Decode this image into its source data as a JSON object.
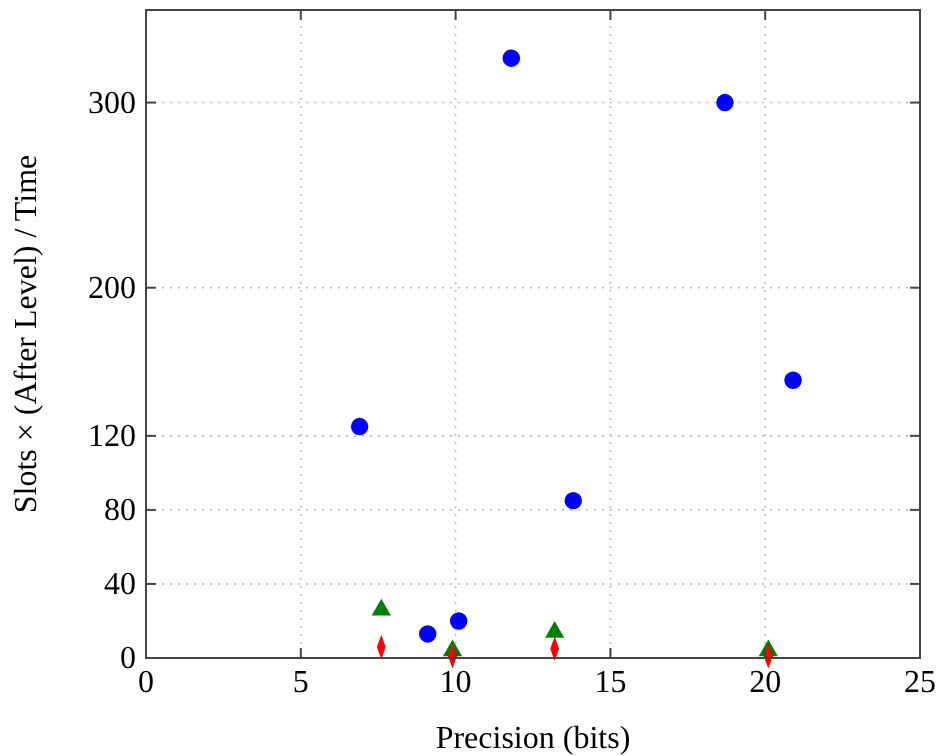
{
  "chart_data": {
    "type": "scatter",
    "xlabel": "Precision (bits)",
    "ylabel": "Slots × (After Level) / Time",
    "xlim": [
      0,
      25
    ],
    "ylim": [
      0,
      350
    ],
    "xticks": [
      0,
      5,
      10,
      15,
      20,
      25
    ],
    "yticks": [
      0,
      40,
      80,
      120,
      200,
      300
    ],
    "grid": true,
    "series": [
      {
        "color": "#0000ff",
        "marker": "circle",
        "x": [
          6.9,
          9.1,
          10.1,
          11.8,
          13.8,
          18.7,
          20.9
        ],
        "values": [
          125,
          13,
          20,
          324,
          85,
          300,
          150
        ]
      },
      {
        "color": "#008000",
        "marker": "triangle",
        "x": [
          7.6,
          9.9,
          13.2,
          20.1
        ],
        "values": [
          26,
          4,
          14,
          4
        ]
      },
      {
        "color": "#ff0000",
        "marker": "diamond",
        "x": [
          7.6,
          9.9,
          13.2,
          20.1
        ],
        "values": [
          6,
          1,
          5,
          1
        ]
      }
    ]
  }
}
